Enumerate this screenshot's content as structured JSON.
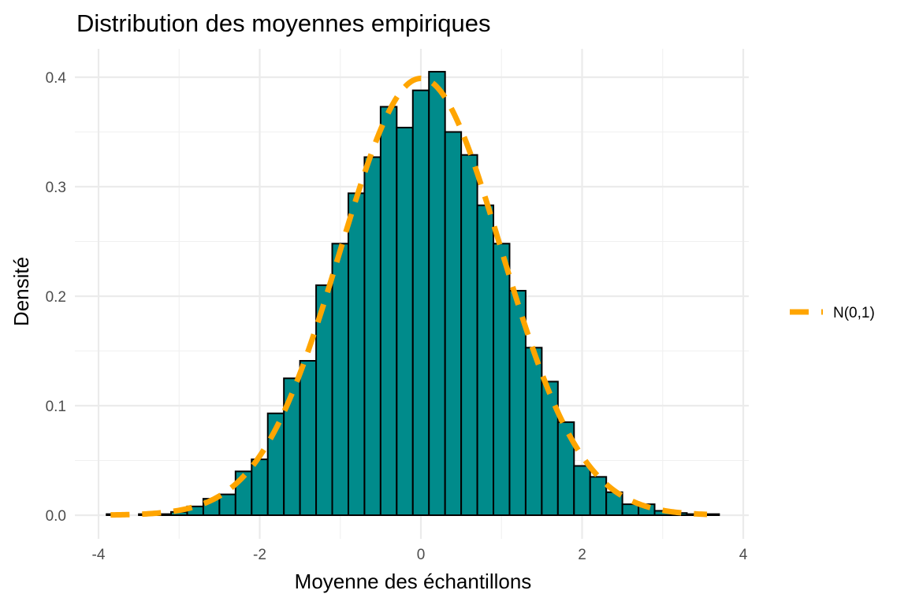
{
  "chart_data": {
    "type": "bar",
    "title": "Distribution des moyennes empiriques",
    "xlabel": "Moyenne des échantillons",
    "ylabel": "Densité",
    "xlim": [
      -4,
      4
    ],
    "ylim": [
      0,
      0.4
    ],
    "x_ticks": [
      "-4",
      "-2",
      "0",
      "2",
      "4"
    ],
    "y_ticks": [
      "0.0",
      "0.1",
      "0.2",
      "0.3",
      "0.4"
    ],
    "grid": true,
    "bin_width": 0.2,
    "bins": [
      {
        "x0": -3.9,
        "x1": -3.7,
        "density": 0.001
      },
      {
        "x0": -3.7,
        "x1": -3.5,
        "density": 0.0
      },
      {
        "x0": -3.5,
        "x1": -3.3,
        "density": 0.001
      },
      {
        "x0": -3.3,
        "x1": -3.1,
        "density": 0.001
      },
      {
        "x0": -3.1,
        "x1": -2.9,
        "density": 0.003
      },
      {
        "x0": -2.9,
        "x1": -2.7,
        "density": 0.008
      },
      {
        "x0": -2.7,
        "x1": -2.5,
        "density": 0.015
      },
      {
        "x0": -2.5,
        "x1": -2.3,
        "density": 0.019
      },
      {
        "x0": -2.3,
        "x1": -2.1,
        "density": 0.04
      },
      {
        "x0": -2.1,
        "x1": -1.9,
        "density": 0.051
      },
      {
        "x0": -1.9,
        "x1": -1.7,
        "density": 0.093
      },
      {
        "x0": -1.7,
        "x1": -1.5,
        "density": 0.125
      },
      {
        "x0": -1.5,
        "x1": -1.3,
        "density": 0.141
      },
      {
        "x0": -1.3,
        "x1": -1.1,
        "density": 0.21
      },
      {
        "x0": -1.1,
        "x1": -0.9,
        "density": 0.248
      },
      {
        "x0": -0.9,
        "x1": -0.7,
        "density": 0.294
      },
      {
        "x0": -0.7,
        "x1": -0.5,
        "density": 0.327
      },
      {
        "x0": -0.5,
        "x1": -0.3,
        "density": 0.373
      },
      {
        "x0": -0.3,
        "x1": -0.1,
        "density": 0.354
      },
      {
        "x0": -0.1,
        "x1": 0.1,
        "density": 0.388
      },
      {
        "x0": 0.1,
        "x1": 0.3,
        "density": 0.405
      },
      {
        "x0": 0.3,
        "x1": 0.5,
        "density": 0.35
      },
      {
        "x0": 0.5,
        "x1": 0.7,
        "density": 0.329
      },
      {
        "x0": 0.7,
        "x1": 0.9,
        "density": 0.283
      },
      {
        "x0": 0.9,
        "x1": 1.1,
        "density": 0.248
      },
      {
        "x0": 1.1,
        "x1": 1.3,
        "density": 0.205
      },
      {
        "x0": 1.3,
        "x1": 1.5,
        "density": 0.153
      },
      {
        "x0": 1.5,
        "x1": 1.7,
        "density": 0.122
      },
      {
        "x0": 1.7,
        "x1": 1.9,
        "density": 0.085
      },
      {
        "x0": 1.9,
        "x1": 2.1,
        "density": 0.045
      },
      {
        "x0": 2.1,
        "x1": 2.3,
        "density": 0.035
      },
      {
        "x0": 2.3,
        "x1": 2.5,
        "density": 0.021
      },
      {
        "x0": 2.5,
        "x1": 2.7,
        "density": 0.01
      },
      {
        "x0": 2.7,
        "x1": 2.9,
        "density": 0.01
      },
      {
        "x0": 2.9,
        "x1": 3.1,
        "density": 0.004
      },
      {
        "x0": 3.1,
        "x1": 3.3,
        "density": 0.002
      },
      {
        "x0": 3.3,
        "x1": 3.5,
        "density": 0.001
      },
      {
        "x0": 3.5,
        "x1": 3.7,
        "density": 0.001
      }
    ],
    "bar_color": "#008B8B",
    "bar_outline": "#000000",
    "curve": {
      "name": "N(0,1)",
      "type": "normal_density",
      "mean": 0,
      "sd": 1,
      "x_range": [
        -3.85,
        3.55
      ],
      "color": "#FFA500",
      "linetype": "dashed"
    },
    "legend": {
      "position": "right",
      "entries": [
        "N(0,1)"
      ]
    }
  }
}
